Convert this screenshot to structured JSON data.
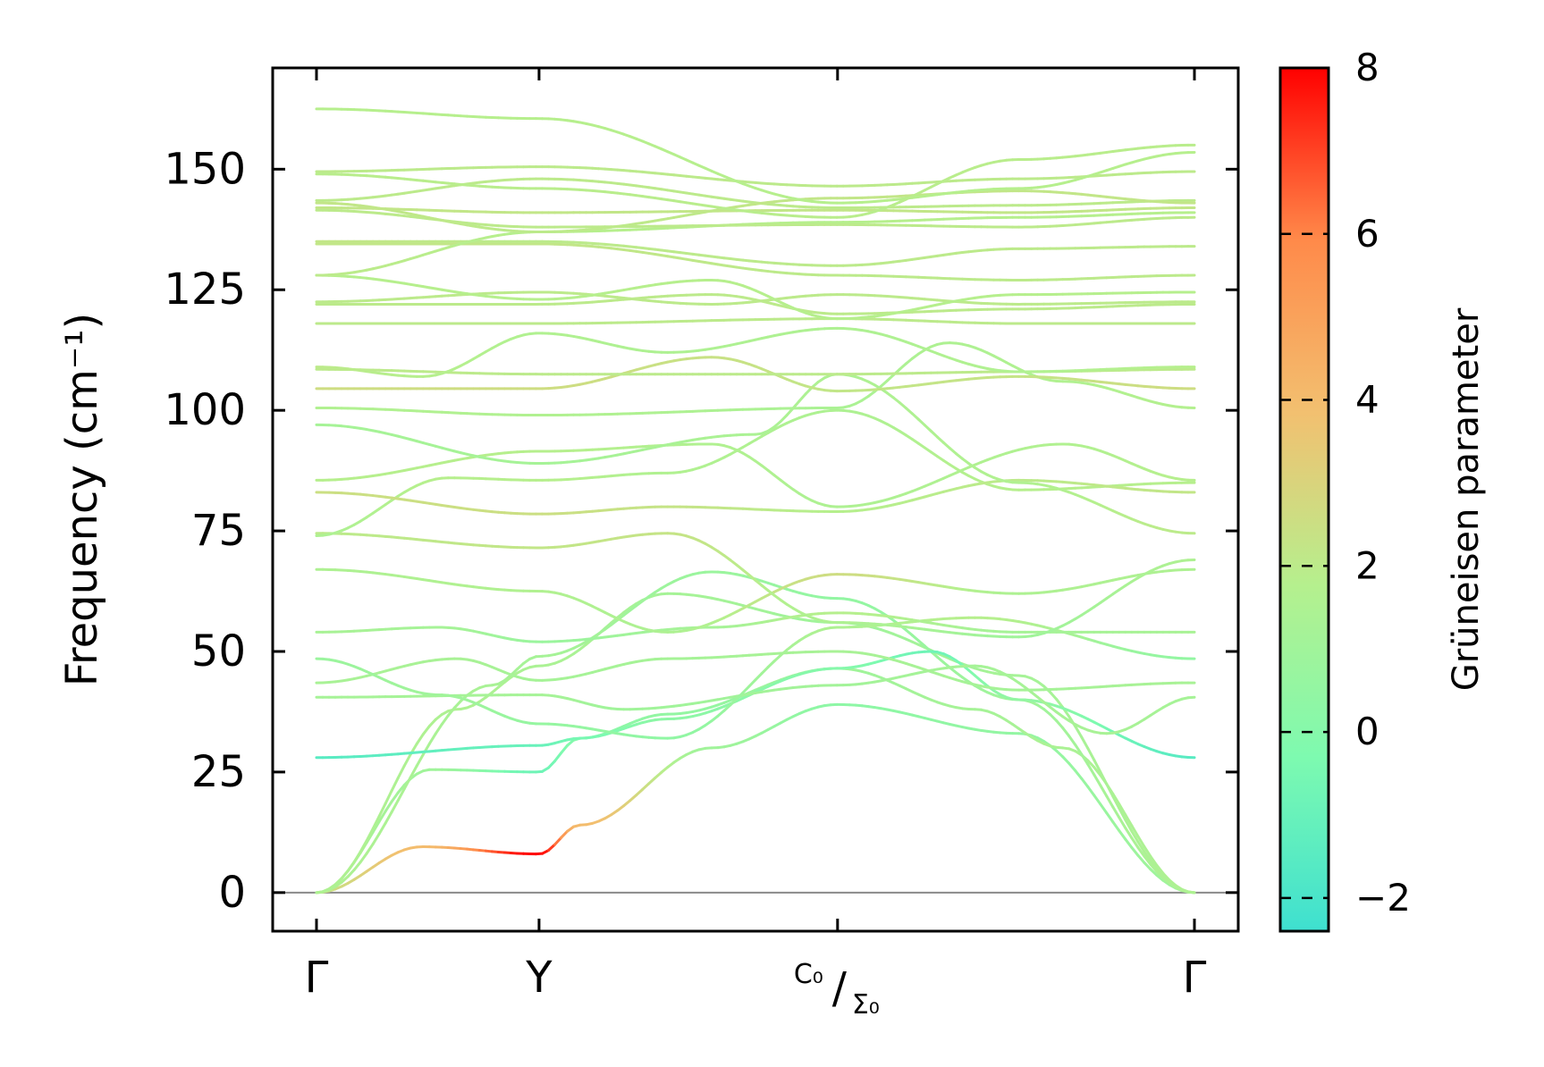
{
  "chart_data": {
    "type": "line",
    "title": "",
    "xlabel": "",
    "ylabel": "Frequency (cm⁻¹)",
    "ylim": [
      -8,
      171
    ],
    "yticks": [
      0,
      25,
      50,
      75,
      100,
      125,
      150
    ],
    "kpoints": [
      {
        "label": "Γ",
        "pos": 0.0
      },
      {
        "label": "Y",
        "pos": 0.2535
      },
      {
        "label_top": "C₀",
        "label_bottom": "Σ₀",
        "pos": 0.5935
      },
      {
        "label": "Γ",
        "pos": 1.0
      }
    ],
    "colorbar": {
      "label": "Grüneisen parameter",
      "range": [
        -2.4,
        8.0
      ],
      "ticks": [
        -2,
        0,
        2,
        4,
        6,
        8
      ],
      "colors": [
        "#3ee0d0",
        "#7dfab0",
        "#b5f08e",
        "#f2c070",
        "#ff8a4a",
        "#ff0000"
      ]
    },
    "zero_line": true,
    "series": [
      {
        "k": [
          0,
          0.12,
          0.2535,
          0.3,
          0.45,
          0.5935,
          0.8,
          1.0
        ],
        "f": [
          0,
          9.5,
          8,
          14,
          30,
          39,
          33,
          0
        ],
        "g": [
          2.5,
          4,
          8,
          4,
          1,
          0.3,
          0.5,
          1
        ]
      },
      {
        "k": [
          0,
          0.13,
          0.2535,
          0.3,
          0.4,
          0.5935,
          0.75,
          0.85,
          1.0
        ],
        "f": [
          0,
          25.5,
          25,
          32,
          37,
          46.5,
          38,
          30,
          0
        ],
        "g": [
          1.5,
          1,
          -0.8,
          0,
          0.5,
          1,
          1.2,
          1.4,
          1.5
        ]
      },
      {
        "k": [
          0,
          0.16,
          0.2535,
          0.4,
          0.5935,
          0.8,
          1.0
        ],
        "f": [
          0,
          38,
          47,
          62,
          56,
          45,
          0
        ],
        "g": [
          1.5,
          1.5,
          1.4,
          1.2,
          1,
          1.2,
          1.5
        ]
      },
      {
        "k": [
          0,
          0.2,
          0.2535,
          0.45,
          0.5935,
          0.8,
          1.0
        ],
        "f": [
          0,
          43,
          49,
          66.5,
          61,
          40,
          0
        ],
        "g": [
          1.5,
          1.3,
          1.2,
          0.8,
          0.5,
          1,
          1.5
        ]
      },
      {
        "k": [
          0,
          0.2535,
          0.3,
          0.4,
          0.5935,
          0.7,
          0.8,
          1.0
        ],
        "f": [
          28,
          30.5,
          32,
          36,
          46.5,
          50,
          40,
          28
        ],
        "g": [
          -1.5,
          -1,
          -0.5,
          0.3,
          0,
          -0.8,
          0.5,
          -1.5
        ]
      },
      {
        "k": [
          0,
          0.2535,
          0.35,
          0.5935,
          0.75,
          0.9,
          1.0
        ],
        "f": [
          40.5,
          41,
          38,
          43,
          47,
          33,
          40.5
        ],
        "g": [
          1.2,
          1.2,
          1,
          1.1,
          1.2,
          1.3,
          1.2
        ]
      },
      {
        "k": [
          0,
          0.16,
          0.2535,
          0.4,
          0.5935,
          0.8,
          1.0
        ],
        "f": [
          43.5,
          48.5,
          44,
          48.5,
          50,
          42,
          43.5
        ],
        "g": [
          1.3,
          1.3,
          1.2,
          1.2,
          1.3,
          1.2,
          1.3
        ]
      },
      {
        "k": [
          0,
          0.14,
          0.2535,
          0.4,
          0.5935,
          0.75,
          1.0
        ],
        "f": [
          48.5,
          41,
          35,
          32,
          55,
          57,
          48.5
        ],
        "g": [
          0.8,
          1,
          0.6,
          0.4,
          1.5,
          1.8,
          0.5
        ]
      },
      {
        "k": [
          0,
          0.14,
          0.2535,
          0.45,
          0.5935,
          0.8,
          1.0
        ],
        "f": [
          54,
          55,
          52,
          55,
          58,
          54,
          54
        ],
        "g": [
          1.3,
          1.2,
          0.8,
          1.2,
          1.8,
          1.2,
          1.3
        ]
      },
      {
        "k": [
          0,
          0.2535,
          0.4,
          0.5935,
          0.8,
          1.0
        ],
        "f": [
          67,
          62.5,
          54,
          66,
          62,
          67
        ],
        "g": [
          1.5,
          1.6,
          1.5,
          2.6,
          1.5,
          1.5
        ]
      },
      {
        "k": [
          0,
          0.2535,
          0.4,
          0.5935,
          0.8,
          1.0
        ],
        "f": [
          74.5,
          71.5,
          74.5,
          56,
          53,
          69
        ],
        "g": [
          2,
          2.2,
          2.3,
          1.5,
          1,
          1.5
        ]
      },
      {
        "k": [
          0,
          0.15,
          0.2535,
          0.4,
          0.5935,
          0.8,
          1.0
        ],
        "f": [
          74,
          86,
          85.5,
          87,
          100,
          83.5,
          85
        ],
        "g": [
          1.5,
          1.8,
          1.8,
          1.6,
          1.5,
          1.8,
          1.8
        ]
      },
      {
        "k": [
          0,
          0.2535,
          0.4,
          0.5935,
          0.8,
          1.0
        ],
        "f": [
          83,
          78.5,
          80,
          79,
          85.5,
          83
        ],
        "g": [
          2.5,
          2.5,
          2.3,
          1.8,
          2,
          2.2
        ]
      },
      {
        "k": [
          0,
          0.2535,
          0.45,
          0.5935,
          0.85,
          1.0
        ],
        "f": [
          85.5,
          91.5,
          93,
          80,
          93,
          85.5
        ],
        "g": [
          1.8,
          1.8,
          1.6,
          1.5,
          1.6,
          1.8
        ]
      },
      {
        "k": [
          0,
          0.2535,
          0.5,
          0.5935,
          0.8,
          1.0
        ],
        "f": [
          97,
          89,
          95,
          107.5,
          85,
          74.5
        ],
        "g": [
          1.2,
          1.2,
          1.4,
          1.5,
          1.6,
          2
        ]
      },
      {
        "k": [
          0,
          0.2535,
          0.5935,
          0.72,
          0.85,
          1.0
        ],
        "f": [
          100.5,
          99,
          100.5,
          114,
          106,
          100.5
        ],
        "g": [
          1.6,
          1.6,
          1.4,
          1.5,
          1.6,
          1.7
        ]
      },
      {
        "k": [
          0,
          0.2535,
          0.45,
          0.5935,
          0.8,
          1.0
        ],
        "f": [
          104.5,
          104.5,
          111,
          104,
          107,
          104.5
        ],
        "g": [
          2.6,
          2.6,
          2.4,
          2.2,
          2.3,
          2.6
        ]
      },
      {
        "k": [
          0,
          0.2535,
          0.5935,
          0.8,
          1.0
        ],
        "f": [
          108.5,
          107.5,
          107.5,
          108,
          108.5
        ],
        "g": [
          2,
          2,
          2,
          2,
          2
        ]
      },
      {
        "k": [
          0,
          0.12,
          0.2535,
          0.4,
          0.5935,
          0.8,
          1.0
        ],
        "f": [
          109,
          107,
          116,
          112,
          117,
          108,
          109
        ],
        "g": [
          2,
          1.8,
          1.6,
          1.5,
          1.5,
          1.6,
          1.8
        ]
      },
      {
        "k": [
          0,
          0.2535,
          0.5935,
          0.8,
          1.0
        ],
        "f": [
          118,
          118,
          119,
          118,
          118
        ],
        "g": [
          2,
          2,
          2,
          2,
          2
        ]
      },
      {
        "k": [
          0,
          0.2535,
          0.45,
          0.5935,
          0.8,
          1.0
        ],
        "f": [
          122,
          122,
          124,
          120,
          121,
          122
        ],
        "g": [
          2,
          2,
          2,
          2,
          2,
          2
        ]
      },
      {
        "k": [
          0,
          0.2535,
          0.45,
          0.5935,
          0.8,
          1.0
        ],
        "f": [
          122.5,
          124.5,
          122,
          124,
          122,
          122.5
        ],
        "g": [
          2,
          2,
          2,
          2,
          2,
          2
        ]
      },
      {
        "k": [
          0,
          0.2535,
          0.45,
          0.5935,
          0.8,
          1.0
        ],
        "f": [
          128,
          123,
          127,
          119,
          124,
          124.5
        ],
        "g": [
          1.8,
          1.8,
          1.8,
          1.8,
          1.8,
          1.8
        ]
      },
      {
        "k": [
          0,
          0.2535,
          0.5935,
          0.8,
          1.0
        ],
        "f": [
          134.5,
          134.5,
          128,
          127,
          128
        ],
        "g": [
          2.2,
          2.2,
          2,
          2,
          2
        ]
      },
      {
        "k": [
          0,
          0.2535,
          0.5935,
          0.8,
          1.0
        ],
        "f": [
          135,
          135,
          130,
          133.5,
          134
        ],
        "g": [
          2.2,
          2,
          2,
          2,
          2
        ]
      },
      {
        "k": [
          0,
          0.2535,
          0.5935,
          0.8,
          1.0
        ],
        "f": [
          128,
          137,
          139,
          140,
          141
        ],
        "g": [
          2,
          1.8,
          1.8,
          1.8,
          1.8
        ]
      },
      {
        "k": [
          0,
          0.2535,
          0.5935,
          0.8,
          1.0
        ],
        "f": [
          141.5,
          138,
          138.5,
          138,
          140
        ],
        "g": [
          2,
          2,
          2,
          2,
          2
        ]
      },
      {
        "k": [
          0,
          0.2535,
          0.5935,
          0.8,
          1.0
        ],
        "f": [
          142,
          141,
          141.5,
          141,
          142
        ],
        "g": [
          2.2,
          2.2,
          2.2,
          2.2,
          2.2
        ]
      },
      {
        "k": [
          0,
          0.2535,
          0.5935,
          0.8,
          1.0
        ],
        "f": [
          143.5,
          148,
          142,
          142.5,
          143.5
        ],
        "g": [
          2,
          2,
          2,
          2,
          2
        ]
      },
      {
        "k": [
          0,
          0.2535,
          0.5935,
          0.8,
          1.0
        ],
        "f": [
          143,
          137,
          144,
          145.5,
          143
        ],
        "g": [
          2.2,
          2,
          2.2,
          2.2,
          2.2
        ]
      },
      {
        "k": [
          0,
          0.2535,
          0.5935,
          0.8,
          1.0
        ],
        "f": [
          149.5,
          150.5,
          146.5,
          148,
          149.5
        ],
        "g": [
          2,
          2,
          2,
          2,
          2
        ]
      },
      {
        "k": [
          0,
          0.2535,
          0.5935,
          0.8,
          1.0
        ],
        "f": [
          162.5,
          160.5,
          143,
          146,
          153.5
        ],
        "g": [
          1.8,
          1.8,
          1.8,
          1.8,
          1.8
        ]
      },
      {
        "k": [
          0,
          0.2535,
          0.5935,
          0.8,
          1.0
        ],
        "f": [
          149,
          146,
          140,
          152,
          155
        ],
        "g": [
          1.9,
          1.9,
          1.9,
          1.9,
          1.9
        ]
      }
    ]
  }
}
